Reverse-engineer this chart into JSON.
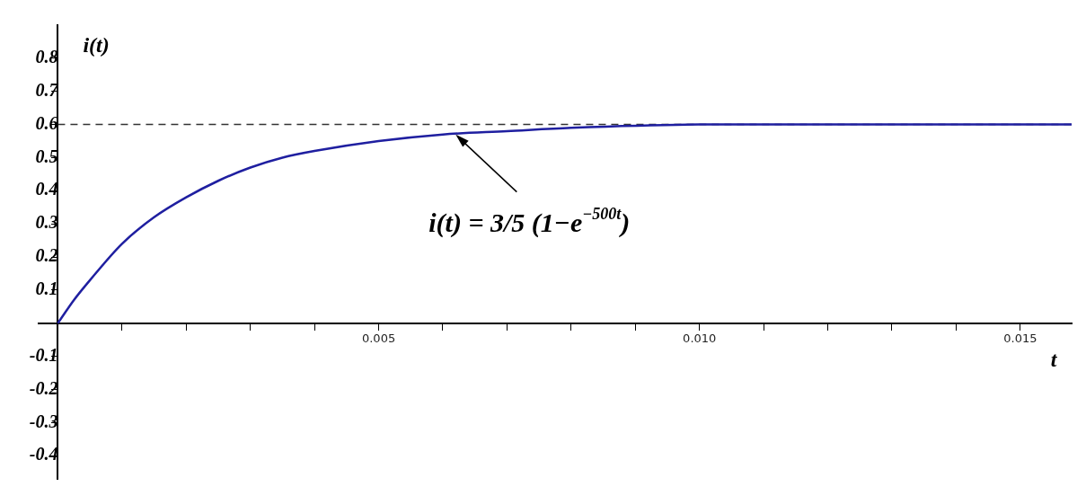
{
  "chart_data": {
    "type": "line",
    "xlabel": "t",
    "ylabel": "i(t)",
    "x": [
      0,
      0.00025,
      0.0005,
      0.001,
      0.0015,
      0.002,
      0.0025,
      0.003,
      0.0035,
      0.004,
      0.005,
      0.006,
      0.007,
      0.008,
      0.01,
      0.012,
      0.0158
    ],
    "series": [
      {
        "color": "#1f1fa0",
        "values": [
          0,
          0.07,
          0.13,
          0.24,
          0.32,
          0.38,
          0.43,
          0.47,
          0.5,
          0.52,
          0.55,
          0.57,
          0.58,
          0.59,
          0.6,
          0.6,
          0.6
        ]
      }
    ],
    "xlim": [
      -0.0003,
      0.0158
    ],
    "ylim": [
      -0.47,
      0.9
    ],
    "xticks": [
      {
        "value": 0.001,
        "label": null
      },
      {
        "value": 0.002,
        "label": null
      },
      {
        "value": 0.003,
        "label": null
      },
      {
        "value": 0.004,
        "label": null
      },
      {
        "value": 0.005,
        "label": "0.005"
      },
      {
        "value": 0.006,
        "label": null
      },
      {
        "value": 0.007,
        "label": null
      },
      {
        "value": 0.008,
        "label": null
      },
      {
        "value": 0.009,
        "label": null
      },
      {
        "value": 0.01,
        "label": "0.010"
      },
      {
        "value": 0.011,
        "label": null
      },
      {
        "value": 0.012,
        "label": null
      },
      {
        "value": 0.013,
        "label": null
      },
      {
        "value": 0.014,
        "label": null
      },
      {
        "value": 0.015,
        "label": "0.015"
      }
    ],
    "yticks": [
      -0.4,
      -0.3,
      -0.2,
      -0.1,
      0.1,
      0.2,
      0.3,
      0.4,
      0.5,
      0.6,
      0.7,
      0.8
    ],
    "ref_lines": [
      {
        "axis": "y",
        "value": 0.6,
        "color": "#333333",
        "line_style": "dashed"
      }
    ],
    "annotations": [
      {
        "text": "i(t) = 3/5 (1−e$^{−500t}$)",
        "x": 0.0062,
        "y": 0.57
      }
    ],
    "grid": false,
    "legend": false,
    "marker": "none",
    "line_style": "solid"
  }
}
